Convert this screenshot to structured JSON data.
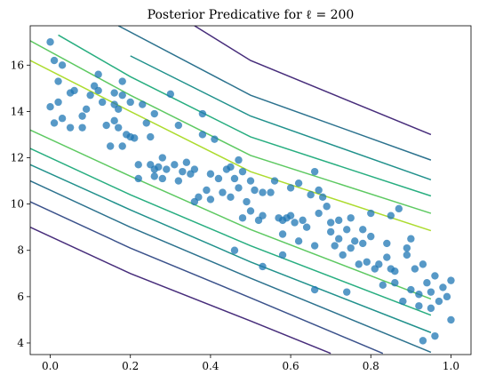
{
  "chart_data": {
    "type": "scatter",
    "title": "Posterior Predicative for ℓ = 200",
    "xlabel": "",
    "ylabel": "",
    "xlim": [
      -0.05,
      1.05
    ],
    "ylim": [
      3.5,
      17.7
    ],
    "x_ticks": [
      0.0,
      0.2,
      0.4,
      0.6,
      0.8,
      1.0
    ],
    "x_tick_labels": [
      "0.0",
      "0.2",
      "0.4",
      "0.6",
      "0.8",
      "1.0"
    ],
    "y_ticks": [
      4,
      6,
      8,
      10,
      12,
      14,
      16
    ],
    "y_tick_labels": [
      "4",
      "6",
      "8",
      "10",
      "12",
      "14",
      "16"
    ],
    "grid": false,
    "colors": {
      "points": "#1f77b4",
      "contours": [
        "#472d7b",
        "#3b528b",
        "#2c728e",
        "#21918c",
        "#28ae80",
        "#5ec962",
        "#addc30"
      ]
    },
    "contour_lines": [
      {
        "level": 1,
        "color": "#472d7b",
        "x": [
          -0.05,
          0.2,
          0.5,
          0.7
        ],
        "y": [
          9.0,
          7.0,
          4.95,
          3.55
        ]
      },
      {
        "level": 2,
        "color": "#3b528b",
        "x": [
          -0.05,
          0.2,
          0.5,
          0.83
        ],
        "y": [
          10.1,
          8.1,
          5.95,
          3.55
        ]
      },
      {
        "level": 3,
        "color": "#2c728e",
        "x": [
          -0.05,
          0.2,
          0.5,
          0.95
        ],
        "y": [
          11.0,
          9.0,
          6.8,
          3.6
        ]
      },
      {
        "level": 4,
        "color": "#21918c",
        "x": [
          -0.05,
          0.2,
          0.5,
          0.95
        ],
        "y": [
          11.7,
          9.75,
          7.5,
          4.45
        ]
      },
      {
        "level": 5,
        "color": "#28ae80",
        "x": [
          -0.05,
          0.2,
          0.5,
          0.95
        ],
        "y": [
          12.4,
          10.4,
          8.2,
          5.2
        ]
      },
      {
        "level": 6,
        "color": "#5ec962",
        "x": [
          -0.05,
          0.2,
          0.5,
          0.95
        ],
        "y": [
          13.2,
          11.2,
          8.9,
          5.9
        ]
      },
      {
        "level": 7,
        "color": "#addc30",
        "x": [
          -0.05,
          0.2,
          0.5,
          0.95
        ],
        "y": [
          16.2,
          14.0,
          11.4,
          8.85
        ]
      },
      {
        "level": 8,
        "color": "#5ec962",
        "x": [
          -0.05,
          0.2,
          0.5,
          0.95
        ],
        "y": [
          17.05,
          14.7,
          12.1,
          9.6
        ]
      },
      {
        "level": 9,
        "color": "#28ae80",
        "x": [
          0.02,
          0.2,
          0.5,
          0.95
        ],
        "y": [
          17.3,
          15.5,
          12.9,
          10.35
        ]
      },
      {
        "level": 10,
        "color": "#21918c",
        "x": [
          0.2,
          0.5,
          0.95
        ],
        "y": [
          16.4,
          13.8,
          11.05
        ]
      },
      {
        "level": 11,
        "color": "#2c728e",
        "x": [
          0.17,
          0.5,
          0.95
        ],
        "y": [
          17.7,
          14.7,
          11.9
        ]
      },
      {
        "level": 12,
        "color": "#472d7b",
        "x": [
          0.36,
          0.5,
          0.95
        ],
        "y": [
          17.7,
          16.2,
          13.0
        ]
      }
    ],
    "points": [
      {
        "x": 0.0,
        "y": 17.0
      },
      {
        "x": 0.01,
        "y": 16.2
      },
      {
        "x": 0.03,
        "y": 16.0
      },
      {
        "x": 0.0,
        "y": 14.2
      },
      {
        "x": 0.02,
        "y": 15.3
      },
      {
        "x": 0.02,
        "y": 14.4
      },
      {
        "x": 0.01,
        "y": 13.5
      },
      {
        "x": 0.03,
        "y": 13.7
      },
      {
        "x": 0.05,
        "y": 13.3
      },
      {
        "x": 0.05,
        "y": 14.8
      },
      {
        "x": 0.06,
        "y": 14.9
      },
      {
        "x": 0.08,
        "y": 13.8
      },
      {
        "x": 0.08,
        "y": 13.3
      },
      {
        "x": 0.09,
        "y": 14.1
      },
      {
        "x": 0.1,
        "y": 14.7
      },
      {
        "x": 0.11,
        "y": 15.1
      },
      {
        "x": 0.12,
        "y": 14.9
      },
      {
        "x": 0.12,
        "y": 15.6
      },
      {
        "x": 0.13,
        "y": 14.4
      },
      {
        "x": 0.14,
        "y": 13.4
      },
      {
        "x": 0.15,
        "y": 12.5
      },
      {
        "x": 0.16,
        "y": 14.8
      },
      {
        "x": 0.16,
        "y": 14.3
      },
      {
        "x": 0.16,
        "y": 13.6
      },
      {
        "x": 0.17,
        "y": 13.3
      },
      {
        "x": 0.17,
        "y": 14.1
      },
      {
        "x": 0.18,
        "y": 14.7
      },
      {
        "x": 0.18,
        "y": 15.3
      },
      {
        "x": 0.18,
        "y": 12.5
      },
      {
        "x": 0.19,
        "y": 13.0
      },
      {
        "x": 0.2,
        "y": 14.4
      },
      {
        "x": 0.2,
        "y": 12.9
      },
      {
        "x": 0.21,
        "y": 12.85
      },
      {
        "x": 0.22,
        "y": 11.7
      },
      {
        "x": 0.22,
        "y": 11.1
      },
      {
        "x": 0.23,
        "y": 14.3
      },
      {
        "x": 0.24,
        "y": 13.5
      },
      {
        "x": 0.25,
        "y": 12.9
      },
      {
        "x": 0.25,
        "y": 11.7
      },
      {
        "x": 0.26,
        "y": 11.5
      },
      {
        "x": 0.26,
        "y": 13.9
      },
      {
        "x": 0.26,
        "y": 11.2
      },
      {
        "x": 0.27,
        "y": 11.6
      },
      {
        "x": 0.28,
        "y": 12.0
      },
      {
        "x": 0.28,
        "y": 11.1
      },
      {
        "x": 0.29,
        "y": 11.5
      },
      {
        "x": 0.3,
        "y": 14.75
      },
      {
        "x": 0.31,
        "y": 11.7
      },
      {
        "x": 0.32,
        "y": 11.0
      },
      {
        "x": 0.32,
        "y": 13.4
      },
      {
        "x": 0.33,
        "y": 11.4
      },
      {
        "x": 0.34,
        "y": 11.8
      },
      {
        "x": 0.35,
        "y": 11.3
      },
      {
        "x": 0.36,
        "y": 10.1
      },
      {
        "x": 0.36,
        "y": 11.5
      },
      {
        "x": 0.37,
        "y": 10.3
      },
      {
        "x": 0.38,
        "y": 13.0
      },
      {
        "x": 0.38,
        "y": 13.9
      },
      {
        "x": 0.39,
        "y": 10.6
      },
      {
        "x": 0.4,
        "y": 11.3
      },
      {
        "x": 0.4,
        "y": 10.2
      },
      {
        "x": 0.41,
        "y": 12.8
      },
      {
        "x": 0.42,
        "y": 11.1
      },
      {
        "x": 0.43,
        "y": 10.5
      },
      {
        "x": 0.44,
        "y": 11.5
      },
      {
        "x": 0.45,
        "y": 10.3
      },
      {
        "x": 0.45,
        "y": 11.6
      },
      {
        "x": 0.46,
        "y": 11.1
      },
      {
        "x": 0.47,
        "y": 10.7
      },
      {
        "x": 0.47,
        "y": 11.9
      },
      {
        "x": 0.48,
        "y": 9.4
      },
      {
        "x": 0.48,
        "y": 11.4
      },
      {
        "x": 0.49,
        "y": 10.1
      },
      {
        "x": 0.5,
        "y": 9.7
      },
      {
        "x": 0.5,
        "y": 11.0
      },
      {
        "x": 0.51,
        "y": 10.6
      },
      {
        "x": 0.52,
        "y": 9.3
      },
      {
        "x": 0.53,
        "y": 10.5
      },
      {
        "x": 0.53,
        "y": 9.5
      },
      {
        "x": 0.55,
        "y": 10.5
      },
      {
        "x": 0.56,
        "y": 11.0
      },
      {
        "x": 0.57,
        "y": 9.4
      },
      {
        "x": 0.58,
        "y": 9.3
      },
      {
        "x": 0.58,
        "y": 8.7
      },
      {
        "x": 0.59,
        "y": 9.4
      },
      {
        "x": 0.6,
        "y": 9.5
      },
      {
        "x": 0.6,
        "y": 10.7
      },
      {
        "x": 0.61,
        "y": 9.2
      },
      {
        "x": 0.62,
        "y": 10.9
      },
      {
        "x": 0.63,
        "y": 9.3
      },
      {
        "x": 0.64,
        "y": 9.0
      },
      {
        "x": 0.65,
        "y": 10.4
      },
      {
        "x": 0.66,
        "y": 8.2
      },
      {
        "x": 0.66,
        "y": 11.4
      },
      {
        "x": 0.67,
        "y": 10.6
      },
      {
        "x": 0.67,
        "y": 9.6
      },
      {
        "x": 0.68,
        "y": 10.3
      },
      {
        "x": 0.69,
        "y": 9.9
      },
      {
        "x": 0.7,
        "y": 8.8
      },
      {
        "x": 0.7,
        "y": 9.2
      },
      {
        "x": 0.71,
        "y": 8.2
      },
      {
        "x": 0.72,
        "y": 8.5
      },
      {
        "x": 0.72,
        "y": 9.3
      },
      {
        "x": 0.73,
        "y": 7.8
      },
      {
        "x": 0.74,
        "y": 8.9
      },
      {
        "x": 0.75,
        "y": 8.1
      },
      {
        "x": 0.75,
        "y": 9.4
      },
      {
        "x": 0.76,
        "y": 8.4
      },
      {
        "x": 0.77,
        "y": 7.4
      },
      {
        "x": 0.78,
        "y": 8.3
      },
      {
        "x": 0.78,
        "y": 8.9
      },
      {
        "x": 0.79,
        "y": 7.5
      },
      {
        "x": 0.8,
        "y": 8.6
      },
      {
        "x": 0.8,
        "y": 9.6
      },
      {
        "x": 0.81,
        "y": 7.2
      },
      {
        "x": 0.82,
        "y": 7.4
      },
      {
        "x": 0.83,
        "y": 6.5
      },
      {
        "x": 0.84,
        "y": 8.3
      },
      {
        "x": 0.84,
        "y": 7.7
      },
      {
        "x": 0.85,
        "y": 9.5
      },
      {
        "x": 0.86,
        "y": 7.1
      },
      {
        "x": 0.86,
        "y": 6.6
      },
      {
        "x": 0.87,
        "y": 9.8
      },
      {
        "x": 0.88,
        "y": 5.8
      },
      {
        "x": 0.89,
        "y": 7.8
      },
      {
        "x": 0.9,
        "y": 6.3
      },
      {
        "x": 0.9,
        "y": 8.5
      },
      {
        "x": 0.91,
        "y": 7.2
      },
      {
        "x": 0.92,
        "y": 6.1
      },
      {
        "x": 0.92,
        "y": 5.6
      },
      {
        "x": 0.93,
        "y": 7.4
      },
      {
        "x": 0.93,
        "y": 4.1
      },
      {
        "x": 0.94,
        "y": 6.6
      },
      {
        "x": 0.95,
        "y": 5.5
      },
      {
        "x": 0.95,
        "y": 6.2
      },
      {
        "x": 0.96,
        "y": 6.9
      },
      {
        "x": 0.96,
        "y": 4.3
      },
      {
        "x": 0.97,
        "y": 5.8
      },
      {
        "x": 0.98,
        "y": 6.4
      },
      {
        "x": 0.99,
        "y": 6.0
      },
      {
        "x": 1.0,
        "y": 6.7
      },
      {
        "x": 1.0,
        "y": 5.0
      },
      {
        "x": 0.74,
        "y": 6.2
      },
      {
        "x": 0.66,
        "y": 6.3
      },
      {
        "x": 0.58,
        "y": 7.8
      },
      {
        "x": 0.53,
        "y": 7.3
      },
      {
        "x": 0.46,
        "y": 8.0
      },
      {
        "x": 0.62,
        "y": 8.4
      },
      {
        "x": 0.89,
        "y": 8.1
      },
      {
        "x": 0.85,
        "y": 7.2
      }
    ]
  }
}
